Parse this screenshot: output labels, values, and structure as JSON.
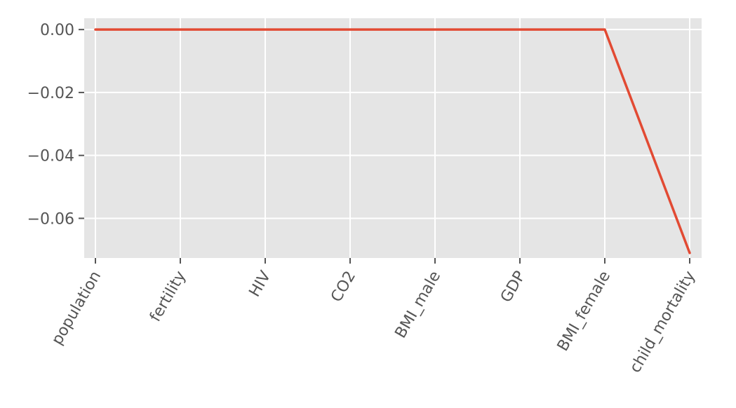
{
  "chart_data": {
    "type": "line",
    "title": "",
    "xlabel": "",
    "ylabel": "",
    "categories": [
      "population",
      "fertility",
      "HIV",
      "CO2",
      "BMI_male",
      "GDP",
      "BMI_female",
      "child_mortality"
    ],
    "series": [
      {
        "values": [
          0.0,
          0.0,
          0.0,
          0.0,
          0.0,
          0.0,
          0.0,
          -0.071
        ],
        "color": "#E24A33"
      }
    ],
    "ylim": [
      -0.0726,
      0.0036
    ],
    "yticks": [
      0.0,
      -0.02,
      -0.04,
      -0.06
    ],
    "ytick_labels": [
      "0.00",
      "−0.02",
      "−0.04",
      "−0.06"
    ],
    "grid": true,
    "style": "ggplot",
    "background_color": "#E5E5E5",
    "grid_color": "#FFFFFF",
    "tick_label_color": "#555555"
  }
}
